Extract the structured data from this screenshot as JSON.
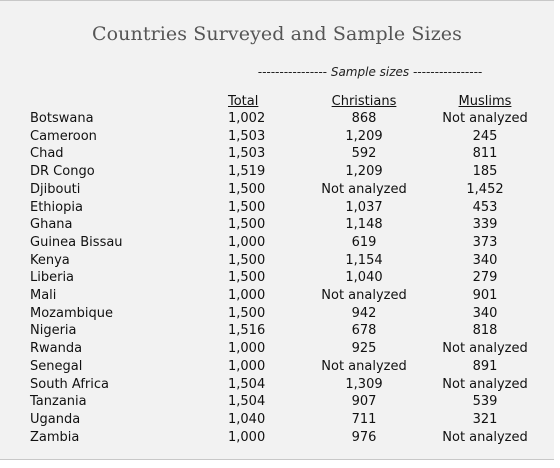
{
  "title": "Countries Surveyed and Sample Sizes",
  "spanner": "---------------- Sample sizes ----------------",
  "headers": {
    "country": "",
    "total": "Total",
    "christians": "Christians",
    "muslims": "Muslims"
  },
  "rows": [
    {
      "country": "Botswana",
      "total": "1,002",
      "christians": "868",
      "muslims": "Not analyzed"
    },
    {
      "country": "Cameroon",
      "total": "1,503",
      "christians": "1,209",
      "muslims": "245"
    },
    {
      "country": "Chad",
      "total": "1,503",
      "christians": "592",
      "muslims": "811"
    },
    {
      "country": "DR Congo",
      "total": "1,519",
      "christians": "1,209",
      "muslims": "185"
    },
    {
      "country": "Djibouti",
      "total": "1,500",
      "christians": "Not analyzed",
      "muslims": "1,452"
    },
    {
      "country": "Ethiopia",
      "total": "1,500",
      "christians": "1,037",
      "muslims": "453"
    },
    {
      "country": "Ghana",
      "total": "1,500",
      "christians": "1,148",
      "muslims": "339"
    },
    {
      "country": "Guinea Bissau",
      "total": "1,000",
      "christians": "619",
      "muslims": "373"
    },
    {
      "country": "Kenya",
      "total": "1,500",
      "christians": "1,154",
      "muslims": "340"
    },
    {
      "country": "Liberia",
      "total": "1,500",
      "christians": "1,040",
      "muslims": "279"
    },
    {
      "country": "Mali",
      "total": "1,000",
      "christians": "Not analyzed",
      "muslims": "901"
    },
    {
      "country": "Mozambique",
      "total": "1,500",
      "christians": "942",
      "muslims": "340"
    },
    {
      "country": "Nigeria",
      "total": "1,516",
      "christians": "678",
      "muslims": "818"
    },
    {
      "country": "Rwanda",
      "total": "1,000",
      "christians": "925",
      "muslims": "Not analyzed"
    },
    {
      "country": "Senegal",
      "total": "1,000",
      "christians": "Not analyzed",
      "muslims": "891"
    },
    {
      "country": "South Africa",
      "total": "1,504",
      "christians": "1,309",
      "muslims": "Not analyzed"
    },
    {
      "country": "Tanzania",
      "total": "1,504",
      "christians": "907",
      "muslims": "539"
    },
    {
      "country": "Uganda",
      "total": "1,040",
      "christians": "711",
      "muslims": "321"
    },
    {
      "country": "Zambia",
      "total": "1,000",
      "christians": "976",
      "muslims": "Not analyzed"
    }
  ]
}
